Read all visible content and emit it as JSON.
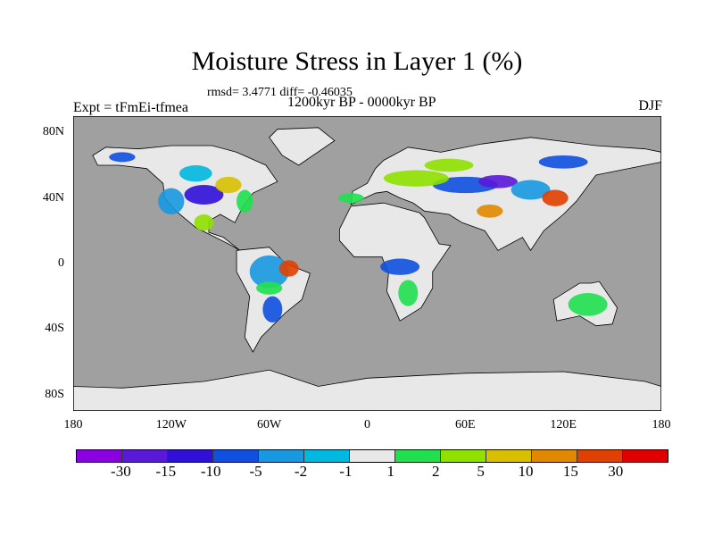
{
  "title": "Moisture Stress in Layer 1 (%)",
  "stats": "rmsd= 3.4771 diff= -0.46035",
  "period": "1200kyr BP - 0000kyr BP",
  "experiment": "Expt = tFmEi-tfmea",
  "season": "DJF",
  "chart_data": {
    "type": "heatmap",
    "lat_ticks": [
      "80N",
      "40N",
      "0",
      "40S",
      "80S"
    ],
    "lat_values": [
      80,
      40,
      0,
      -40,
      -80
    ],
    "lon_ticks": [
      "180",
      "120W",
      "60W",
      "0",
      "60E",
      "120E",
      "180"
    ],
    "lon_values": [
      -180,
      -120,
      -60,
      0,
      60,
      120,
      180
    ],
    "ocean_color": "#a0a0a0",
    "colorbar": {
      "colors": [
        "#8a00e0",
        "#5a18d8",
        "#3010d8",
        "#1050e0",
        "#1898e0",
        "#00b8e0",
        "#e8e8e8",
        "#20e050",
        "#90e000",
        "#d8c000",
        "#e08800",
        "#e04000",
        "#e00000"
      ],
      "labels": [
        "-30",
        "-15",
        "-10",
        "-5",
        "-2",
        "-1",
        "1",
        "2",
        "5",
        "10",
        "15",
        "30"
      ]
    }
  }
}
